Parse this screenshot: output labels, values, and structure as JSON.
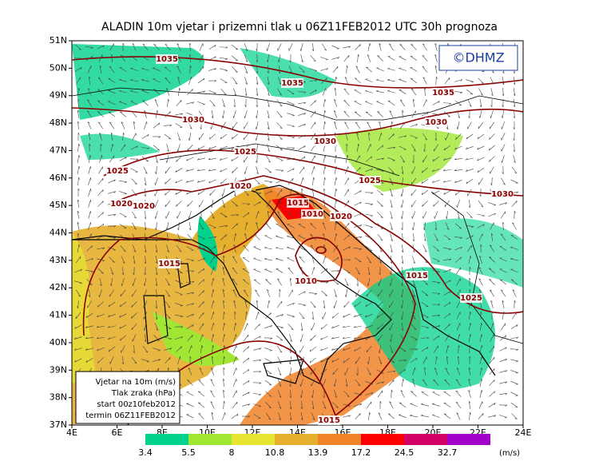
{
  "header": {
    "title": "ALADIN 10m vjetar i prizemni tlak u 06Z11FEB2012 UTC 30h prognoza",
    "logo": "©DHMZ"
  },
  "map": {
    "lat_labels": [
      "51N",
      "50N",
      "49N",
      "48N",
      "47N",
      "46N",
      "45N",
      "44N",
      "43N",
      "42N",
      "41N",
      "40N",
      "39N",
      "38N",
      "37N"
    ],
    "lon_labels": [
      "4E",
      "6E",
      "8E",
      "10E",
      "12E",
      "14E",
      "16E",
      "18E",
      "20E",
      "22E",
      "24E"
    ],
    "isobar_labels": [
      "1035",
      "1035",
      "1035",
      "1030",
      "1030",
      "1030",
      "1025",
      "1025",
      "1025",
      "1030",
      "1020",
      "1020",
      "1020",
      "1015",
      "1010",
      "1020",
      "1015",
      "1010",
      "1015",
      "1025",
      "1015"
    ]
  },
  "info_box": {
    "lines": [
      "Vjetar na 10m (m/s)",
      "Tlak zraka (hPa)",
      "start 00z10feb2012",
      "termin 06Z11FEB2012"
    ]
  },
  "colorbar": {
    "thresholds": [
      3.4,
      5.5,
      8,
      10.8,
      13.9,
      17.2,
      24.5,
      32.7
    ],
    "colors": [
      "#00d28c",
      "#a0e632",
      "#e6e632",
      "#e6af2d",
      "#f08228",
      "#fa0000",
      "#d20064",
      "#a000c8"
    ],
    "unit": "(m/s)"
  }
}
